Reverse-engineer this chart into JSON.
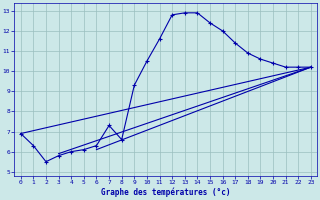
{
  "title": "Graphe des températures (°c)",
  "bg_color": "#cce8e8",
  "grid_color": "#9bbfbf",
  "line_color": "#0000aa",
  "xlim": [
    -0.5,
    23.5
  ],
  "ylim": [
    4.8,
    13.4
  ],
  "xticks": [
    0,
    1,
    2,
    3,
    4,
    5,
    6,
    7,
    8,
    9,
    10,
    11,
    12,
    13,
    14,
    15,
    16,
    17,
    18,
    19,
    20,
    21,
    22,
    23
  ],
  "yticks": [
    5,
    6,
    7,
    8,
    9,
    10,
    11,
    12,
    13
  ],
  "curve1_x": [
    0,
    1,
    2,
    3,
    4,
    5,
    6,
    7,
    8,
    9,
    10,
    11,
    12,
    13,
    14,
    15,
    16,
    17,
    18,
    19,
    20,
    21,
    22,
    23
  ],
  "curve1_y": [
    6.9,
    6.3,
    5.5,
    5.8,
    6.0,
    6.1,
    6.3,
    7.3,
    6.6,
    9.3,
    10.5,
    11.6,
    12.8,
    12.9,
    12.9,
    12.4,
    12.0,
    11.4,
    10.9,
    10.6,
    10.4,
    10.2,
    10.2,
    10.2
  ],
  "curve2_x": [
    0,
    23
  ],
  "curve2_y": [
    6.9,
    10.2
  ],
  "curve3_x": [
    3,
    23
  ],
  "curve3_y": [
    5.9,
    10.2
  ],
  "curve4_x": [
    6,
    23
  ],
  "curve4_y": [
    6.1,
    10.2
  ]
}
